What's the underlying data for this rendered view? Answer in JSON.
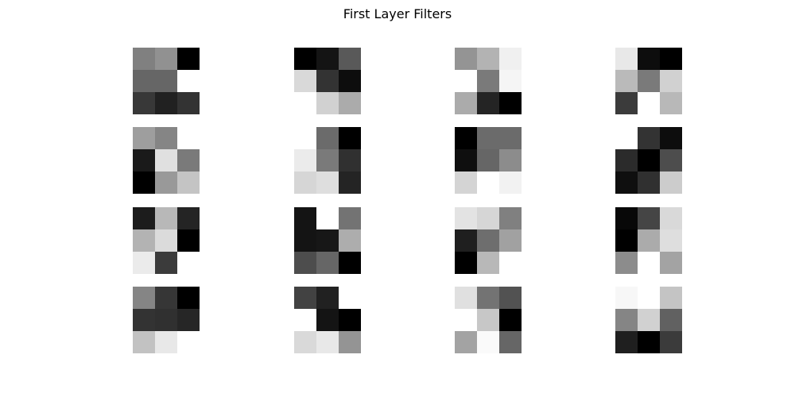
{
  "chart_data": {
    "type": "heatmap",
    "title": "First Layer Filters",
    "colormap": "gray",
    "grid": false,
    "axes_visible": false,
    "rows": 4,
    "cols": 4,
    "filters": [
      [
        [
          0.5,
          0.57,
          0.0
        ],
        [
          0.4,
          0.4,
          1.0
        ],
        [
          0.22,
          0.13,
          0.2
        ]
      ],
      [
        [
          0.0,
          0.08,
          0.35
        ],
        [
          0.85,
          0.2,
          0.05
        ],
        [
          1.0,
          0.82,
          0.67
        ]
      ],
      [
        [
          0.58,
          0.7,
          0.94
        ],
        [
          1.0,
          0.48,
          0.96
        ],
        [
          0.67,
          0.14,
          0.0
        ]
      ],
      [
        [
          0.91,
          0.05,
          0.0
        ],
        [
          0.73,
          0.48,
          0.82
        ],
        [
          0.23,
          1.0,
          0.72
        ]
      ],
      [
        [
          0.62,
          0.52,
          1.0
        ],
        [
          0.1,
          0.88,
          0.48
        ],
        [
          0.0,
          0.6,
          0.77
        ]
      ],
      [
        [
          1.0,
          0.42,
          0.0
        ],
        [
          0.92,
          0.48,
          0.19
        ],
        [
          0.84,
          0.87,
          0.14
        ]
      ],
      [
        [
          0.0,
          0.42,
          0.42
        ],
        [
          0.06,
          0.4,
          0.55
        ],
        [
          0.83,
          1.0,
          0.95
        ]
      ],
      [
        [
          1.0,
          0.2,
          0.05
        ],
        [
          0.17,
          0.0,
          0.3
        ],
        [
          0.06,
          0.19,
          0.8
        ]
      ],
      [
        [
          0.11,
          0.72,
          0.14
        ],
        [
          0.7,
          0.86,
          0.0
        ],
        [
          0.92,
          0.23,
          1.0
        ]
      ],
      [
        [
          0.08,
          1.0,
          0.45
        ],
        [
          0.08,
          0.09,
          0.68
        ],
        [
          0.3,
          0.4,
          0.0
        ]
      ],
      [
        [
          0.89,
          0.84,
          0.5
        ],
        [
          0.12,
          0.43,
          0.63
        ],
        [
          0.0,
          0.72,
          1.0
        ]
      ],
      [
        [
          0.03,
          0.27,
          0.85
        ],
        [
          0.0,
          0.67,
          0.87
        ],
        [
          0.55,
          1.0,
          0.64
        ]
      ],
      [
        [
          0.52,
          0.21,
          0.0
        ],
        [
          0.2,
          0.19,
          0.15
        ],
        [
          0.76,
          0.91,
          1.0
        ]
      ],
      [
        [
          0.26,
          0.13,
          1.0
        ],
        [
          1.0,
          0.08,
          0.0
        ],
        [
          0.85,
          0.91,
          0.58
        ]
      ],
      [
        [
          0.88,
          0.45,
          0.32
        ],
        [
          1.0,
          0.78,
          0.0
        ],
        [
          0.64,
          0.98,
          0.4
        ]
      ],
      [
        [
          0.97,
          1.0,
          0.77
        ],
        [
          0.52,
          0.82,
          0.38
        ],
        [
          0.12,
          0.0,
          0.23
        ]
      ]
    ]
  }
}
